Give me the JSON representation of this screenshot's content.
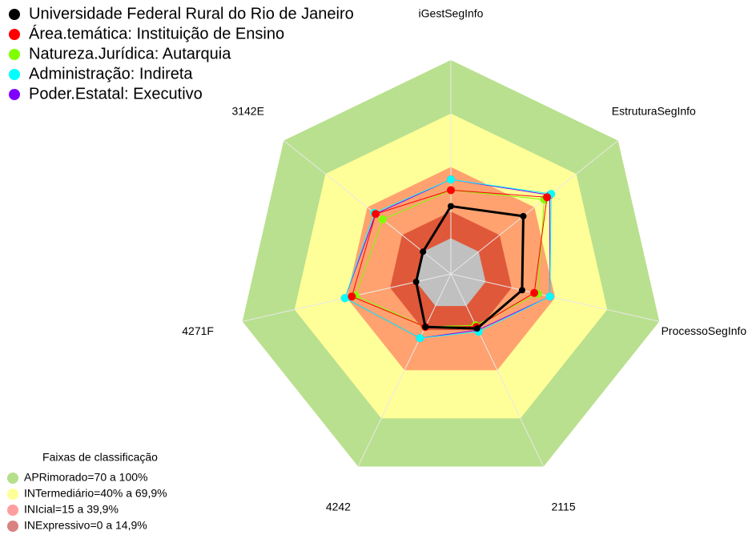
{
  "chart_data": {
    "type": "radar",
    "categories": [
      "iGestSegInfo",
      "EstruturaSegInfo",
      "ProcessoSegInfo",
      "2115",
      "4242",
      "4271F",
      "3142E"
    ],
    "rlim": [
      -20,
      100
    ],
    "bands_title": "Faixas de classificação",
    "bands": [
      {
        "label": "APRimorado=70 a 100%",
        "from": 70,
        "to": 100,
        "color": "#b5df8c",
        "fill": "#b9e08e"
      },
      {
        "label": "INTermediário=40% a 69,9%",
        "from": 40,
        "to": 70,
        "color": "#ffff99",
        "fill": "#ffff99"
      },
      {
        "label": "INIcial=15 a 39,9%",
        "from": 15,
        "to": 40,
        "color": "#ff9e9e",
        "fill": "#ffa26f"
      },
      {
        "label": "INExpressivo=0 a 14,9%",
        "from": 0,
        "to": 15,
        "color": "#d98282",
        "fill": "#e0583a"
      }
    ],
    "series": [
      {
        "name": "Universidade Federal Rural do Rio de Janeiro",
        "color": "#000000",
        "values": [
          18,
          32,
          21,
          14,
          13,
          0,
          0
        ]
      },
      {
        "name": "Área.temática: Instituição de Ensino",
        "color": "#ff0000",
        "values": [
          27,
          49,
          28,
          13,
          13,
          37,
          34
        ]
      },
      {
        "name": "Natureza.Jurídica: Autarquia",
        "color": "#80ff00",
        "values": [
          27,
          47,
          30,
          12,
          13,
          35,
          29
        ]
      },
      {
        "name": "Administração: Indireta",
        "color": "#00ffff",
        "values": [
          33,
          52,
          37,
          16,
          20,
          41,
          35
        ]
      },
      {
        "name": "Poder.Estatal: Executivo",
        "color": "#8000ff",
        "values": [
          33,
          51,
          37,
          15,
          20,
          41,
          34
        ]
      }
    ]
  }
}
